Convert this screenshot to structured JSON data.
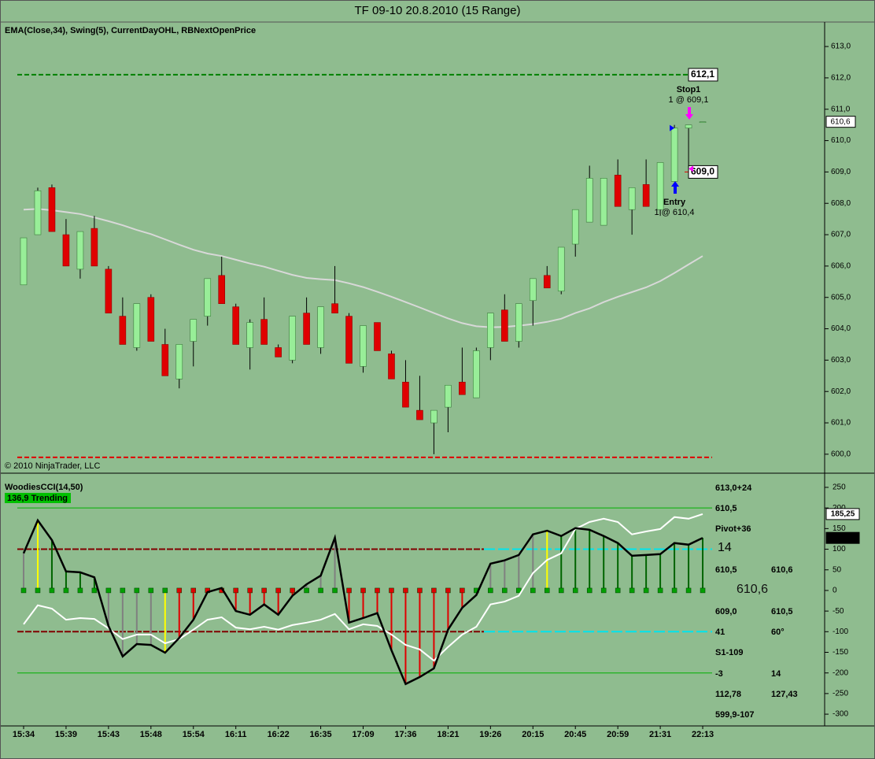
{
  "chart_data": [
    {
      "type": "candlestick",
      "title": "TF 09-10  20.8.2010 (15 Range)",
      "indicator_text": "EMA(Close,34), Swing(5), CurrentDayOHL, RBNextOpenPrice",
      "copyright": "© 2010 NinjaTrader, LLC",
      "categories": [
        "15:34",
        null,
        null,
        "15:39",
        null,
        null,
        "15:43",
        null,
        null,
        "15:48",
        null,
        null,
        "15:54",
        null,
        null,
        "16:11",
        null,
        null,
        "16:22",
        null,
        null,
        "16:35",
        null,
        null,
        "17:09",
        null,
        null,
        "17:36",
        null,
        null,
        "18:21",
        null,
        null,
        "19:26",
        null,
        null,
        "20:15",
        null,
        null,
        "20:45",
        null,
        null,
        "20:59",
        null,
        null,
        "21:31",
        null,
        null,
        "22:13"
      ],
      "open": [
        605.4,
        607.0,
        608.5,
        607.0,
        605.9,
        607.2,
        605.9,
        604.4,
        603.4,
        605.0,
        603.5,
        602.4,
        603.6,
        604.4,
        605.7,
        604.7,
        603.4,
        604.3,
        603.4,
        603.0,
        604.5,
        603.4,
        604.8,
        604.4,
        602.8,
        604.2,
        603.2,
        602.3,
        601.4,
        601.0,
        601.5,
        602.3,
        601.8,
        603.4,
        604.6,
        603.6,
        604.9,
        605.7,
        605.2,
        606.7,
        607.4,
        607.3,
        608.9,
        607.8,
        608.6,
        607.8,
        608.7,
        610.4,
        610.6
      ],
      "high": [
        606.9,
        608.5,
        608.6,
        607.5,
        607.1,
        607.6,
        606.0,
        605.0,
        604.8,
        605.1,
        604.0,
        603.5,
        604.3,
        605.6,
        606.3,
        604.8,
        604.3,
        605.0,
        603.5,
        604.4,
        605.0,
        604.7,
        606.0,
        604.5,
        604.1,
        604.2,
        603.3,
        603.0,
        602.5,
        601.4,
        602.2,
        603.4,
        603.4,
        604.5,
        605.1,
        604.8,
        605.6,
        606.0,
        606.6,
        607.8,
        609.2,
        608.8,
        609.4,
        608.5,
        609.4,
        609.3,
        610.5,
        610.5,
        610.6
      ],
      "low": [
        605.4,
        607.0,
        607.1,
        606.0,
        605.6,
        606.0,
        604.5,
        603.5,
        603.3,
        603.6,
        602.5,
        602.1,
        602.8,
        604.1,
        604.8,
        603.5,
        602.7,
        603.5,
        603.1,
        602.9,
        603.5,
        603.2,
        604.5,
        602.9,
        602.6,
        603.3,
        602.4,
        601.5,
        601.1,
        600.0,
        600.7,
        601.9,
        601.8,
        603.0,
        603.6,
        603.4,
        604.1,
        605.3,
        605.1,
        606.3,
        607.4,
        607.3,
        607.9,
        607.0,
        607.9,
        607.6,
        608.7,
        609.1,
        610.6
      ],
      "close": [
        606.9,
        608.4,
        607.1,
        606.0,
        607.1,
        606.0,
        604.5,
        603.5,
        604.8,
        603.6,
        602.5,
        603.5,
        604.3,
        605.6,
        604.8,
        603.5,
        604.2,
        603.5,
        603.1,
        604.4,
        603.5,
        604.7,
        604.5,
        602.9,
        604.1,
        603.3,
        602.4,
        601.5,
        601.1,
        601.4,
        602.2,
        601.9,
        603.3,
        604.5,
        603.6,
        604.8,
        605.6,
        605.3,
        606.6,
        607.8,
        608.8,
        608.8,
        607.9,
        608.5,
        607.9,
        609.3,
        610.4,
        610.5,
        610.6
      ],
      "up_color": "#98ee98",
      "down_color": "#e00000",
      "ema": {
        "color": "#d8d8d8",
        "values": [
          607.8,
          607.82,
          607.78,
          607.72,
          607.66,
          607.55,
          607.43,
          607.3,
          607.15,
          607.02,
          606.85,
          606.68,
          606.52,
          606.4,
          606.32,
          606.2,
          606.08,
          605.98,
          605.85,
          605.72,
          605.62,
          605.58,
          605.55,
          605.45,
          605.33,
          605.18,
          605.02,
          604.85,
          604.68,
          604.5,
          604.33,
          604.18,
          604.08,
          604.05,
          604.06,
          604.1,
          604.15,
          604.22,
          604.32,
          604.5,
          604.65,
          604.85,
          605.02,
          605.17,
          605.32,
          605.52,
          605.78,
          606.05,
          606.32
        ]
      },
      "levels": [
        {
          "value": 612.1,
          "label": "612,1",
          "color": "#008000",
          "line": true
        },
        {
          "value": 599.9,
          "color": "#e00000",
          "line": true
        },
        {
          "value": 609.0,
          "label": "609,0",
          "color": "#e00000",
          "line": false
        }
      ],
      "executions": [
        {
          "name": "Entry",
          "text": "1 @ 610,4",
          "value": 610.4,
          "color": "#0000ff"
        },
        {
          "name": "Stop1",
          "text": "1 @ 609,1",
          "value": 609.1,
          "color": "#ff00ff"
        }
      ],
      "last": {
        "value": 610.6,
        "label": "610,6"
      },
      "ylim": [
        599.47,
        613.73
      ],
      "yticks": [
        {
          "value": 600,
          "label": "600,0"
        },
        {
          "value": 601,
          "label": "601,0"
        },
        {
          "value": 602,
          "label": "602,0"
        },
        {
          "value": 603,
          "label": "603,0"
        },
        {
          "value": 604,
          "label": "604,0"
        },
        {
          "value": 605,
          "label": "605,0"
        },
        {
          "value": 606,
          "label": "606,0"
        },
        {
          "value": 607,
          "label": "607,0"
        },
        {
          "value": 608,
          "label": "608,0"
        },
        {
          "value": 609,
          "label": "609,0"
        },
        {
          "value": 610,
          "label": "610,0"
        },
        {
          "value": 611,
          "label": "611,0"
        },
        {
          "value": 612,
          "label": "612,0"
        },
        {
          "value": 613,
          "label": "613,0"
        }
      ]
    },
    {
      "type": "cci",
      "title": "WoodiesCCI(14,50)",
      "trend_label": "136,9 Trending",
      "series": [
        {
          "color": "#000000",
          "values": [
            90,
            170,
            122,
            46,
            44,
            32,
            -86,
            -160,
            -130,
            -132,
            -151,
            -115,
            -71,
            -4,
            6,
            -50,
            -59,
            -34,
            -59,
            -13,
            15,
            36,
            128,
            -78,
            -67,
            -55,
            -145,
            -227,
            -210,
            -189,
            -95,
            -42,
            -11,
            65,
            73,
            86,
            136,
            145,
            132,
            151,
            147,
            132,
            115,
            84,
            86,
            88,
            115,
            111,
            127.43
          ],
          "bar_colors": [
            "#808080",
            "#ffff00",
            "#006400",
            "#006400",
            "#006400",
            "#006400",
            "#808080",
            "#808080",
            "#808080",
            "#808080",
            "#ffff00",
            "#e00000",
            "#e00000",
            "#e00000",
            "#e00000",
            "#e00000",
            "#e00000",
            "#e00000",
            "#e00000",
            "#e00000",
            "#808080",
            "#808080",
            "#808080",
            "#e00000",
            "#e00000",
            "#e00000",
            "#e00000",
            "#e00000",
            "#e00000",
            "#e00000",
            "#e00000",
            "#e00000",
            "#808080",
            "#808080",
            "#808080",
            "#808080",
            "#808080",
            "#ffff00",
            "#006400",
            "#006400",
            "#006400",
            "#006400",
            "#006400",
            "#006400",
            "#006400",
            "#006400",
            "#006400",
            "#006400",
            "#006400"
          ]
        },
        {
          "color": "#ffffff",
          "values": [
            -82,
            -36,
            -44,
            -71,
            -67,
            -69,
            -92,
            -118,
            -107,
            -107,
            -128,
            -118,
            -95,
            -71,
            -65,
            -90,
            -94,
            -88,
            -95,
            -84,
            -78,
            -71,
            -57,
            -94,
            -82,
            -86,
            -107,
            -132,
            -143,
            -170,
            -137,
            -107,
            -88,
            -34,
            -27,
            -13,
            42,
            74,
            90,
            149,
            166,
            174,
            166,
            136,
            143,
            149,
            178,
            174,
            185.25
          ]
        }
      ],
      "levels": [
        {
          "value": 200,
          "color": "#00b000"
        },
        {
          "value": 100,
          "color": "#800000",
          "alt_color": "#00e5ee"
        },
        {
          "value": -100,
          "color": "#800000",
          "alt_color": "#00e5ee"
        },
        {
          "value": -200,
          "color": "#00b000"
        }
      ],
      "markers": [
        {
          "value": 185.25,
          "label": "185,25"
        },
        {
          "value": 127.43,
          "label": "127,43"
        }
      ],
      "info": [
        {
          "text": "613,0+24",
          "color": "#0000e0"
        },
        {
          "text": "610,5",
          "color": "#ffff00"
        },
        {
          "text": "Pivot+36",
          "color": "#000000"
        },
        {
          "text": "14",
          "color": "#000000"
        },
        {
          "text": "610,5",
          "color": "#e00000"
        },
        {
          "text": "610,6",
          "color": "#000000"
        },
        {
          "text": "610,6",
          "color": "#000000"
        },
        {
          "text": "609,0",
          "color": "#e00000"
        },
        {
          "text": "610,5",
          "color": "#e00000"
        },
        {
          "text": "41",
          "color": "#0000e0"
        },
        {
          "text": "60°",
          "color": "#0000e0"
        },
        {
          "text": "S1-109",
          "color": "#000000"
        },
        {
          "text": "-3",
          "color": "#e00000"
        },
        {
          "text": "14",
          "color": "#ffff00"
        },
        {
          "text": "112,78",
          "color": "#000000"
        },
        {
          "text": "127,43",
          "color": "#000000"
        },
        {
          "text": "599,9-107",
          "color": "#e00000"
        }
      ],
      "ylim": [
        -326.6,
        276.7
      ],
      "yticks": [
        250,
        200,
        150,
        100,
        50,
        0,
        -50,
        -100,
        -150,
        -200,
        -250,
        -300
      ]
    }
  ]
}
